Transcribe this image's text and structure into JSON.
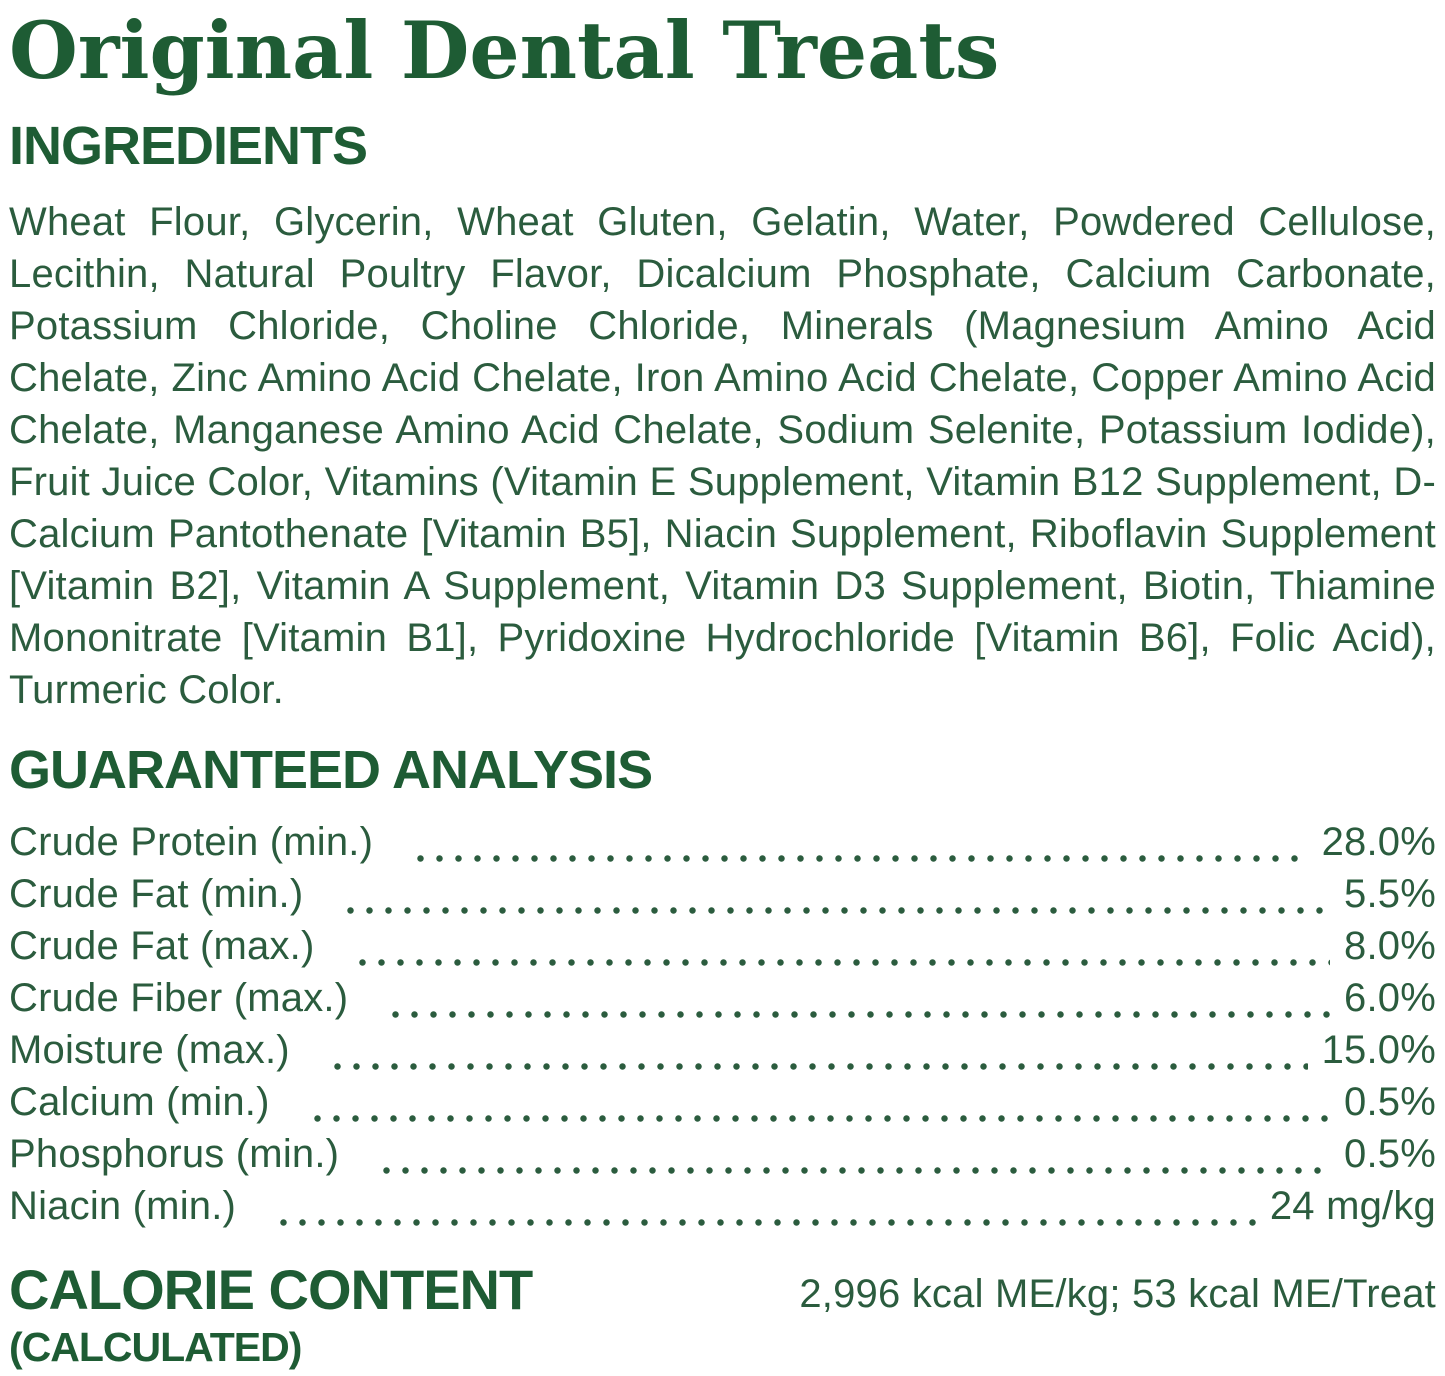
{
  "colors": {
    "heading_green": "#1e5c34",
    "body_green": "#2b5c3e",
    "background": "#ffffff"
  },
  "title": "Original Dental Treats",
  "ingredients": {
    "heading": "INGREDIENTS",
    "text": "Wheat Flour, Glycerin, Wheat Gluten, Gelatin, Water, Powdered Cellulose, Lecithin, Natural Poultry Flavor, Dicalcium Phosphate, Calcium Carbonate, Potassium Chloride, Choline Chloride, Minerals (Magnesium Amino Acid Chelate, Zinc Amino Acid Chelate, Iron Amino Acid Chelate, Copper Amino Acid Chelate, Manganese Amino Acid Chelate, Sodium Selenite, Potassium Iodide), Fruit Juice Color, Vitamins (Vitamin E Supplement, Vitamin B12 Supplement, D-Calcium Pantothenate [Vitamin B5], Niacin Supplement, Riboflavin Supplement [Vitamin B2], Vitamin A Supplement, Vitamin D3 Supplement, Biotin, Thiamine Mononitrate [Vitamin B1], Pyridoxine Hydrochloride [Vitamin B6], Folic Acid), Turmeric Color."
  },
  "guaranteed_analysis": {
    "heading": "GUARANTEED ANALYSIS",
    "rows": [
      {
        "label": "Crude Protein (min.)",
        "value": "28.0%"
      },
      {
        "label": "Crude Fat (min.)",
        "value": "5.5%"
      },
      {
        "label": "Crude Fat (max.)",
        "value": "8.0%"
      },
      {
        "label": "Crude Fiber (max.)",
        "value": "6.0%"
      },
      {
        "label": "Moisture (max.)",
        "value": "15.0%"
      },
      {
        "label": "Calcium (min.)",
        "value": "0.5%"
      },
      {
        "label": "Phosphorus (min.)",
        "value": "0.5%"
      },
      {
        "label": "Niacin (min.)",
        "value": "24 mg/kg"
      }
    ]
  },
  "calorie_content": {
    "heading": "CALORIE CONTENT",
    "subheading": "(CALCULATED)",
    "value": "2,996 kcal ME/kg; 53 kcal ME/Treat"
  }
}
